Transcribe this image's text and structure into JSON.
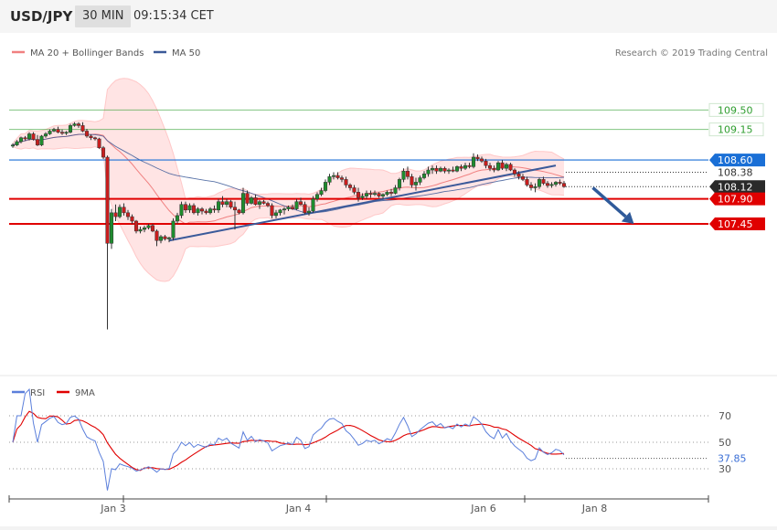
{
  "header": {
    "symbol": "USD/JPY",
    "timeframe": "30 MIN",
    "time": "09:15:34 CET"
  },
  "main_legend": {
    "items": [
      {
        "label": "MA 20 + Bollinger Bands",
        "color": "#f08080"
      },
      {
        "label": "MA 50",
        "color": "#3b5998"
      }
    ],
    "copyright": "Research © 2019 Trading Central"
  },
  "levels": {
    "r2": {
      "label": "109.50",
      "value": 109.5,
      "color": "#2f9e2f"
    },
    "r1": {
      "label": "109.15",
      "value": 109.15,
      "color": "#2f9e2f"
    },
    "pivot": {
      "label": "108.60",
      "value": 108.6,
      "color": "#1a6fd6"
    },
    "last": {
      "label": "108.12",
      "value": 108.12,
      "color": "#2a2a2a"
    },
    "s1": {
      "label": "107.90",
      "value": 107.9,
      "color": "#e00000"
    },
    "s2": {
      "label": "107.45",
      "value": 107.45,
      "color": "#e00000"
    },
    "ma": {
      "label": "108.38",
      "value": 108.38
    }
  },
  "rsi_legend": {
    "items": [
      {
        "label": "RSI",
        "color": "#5b7fdb"
      },
      {
        "label": "9MA",
        "color": "#e00000"
      }
    ]
  },
  "rsi_axis": {
    "ticks": [
      {
        "label": "70",
        "value": 70
      },
      {
        "label": "50",
        "value": 50
      },
      {
        "label": "30",
        "value": 30
      }
    ],
    "current": {
      "label": "37.85",
      "value": 37.85
    }
  },
  "x_axis": {
    "labels": [
      {
        "label": "Jan 3",
        "index": 24
      },
      {
        "label": "Jan 4",
        "index": 69
      },
      {
        "label": "Jan 6",
        "index": 114
      },
      {
        "label": "Jan 8",
        "index": 141
      }
    ]
  },
  "chart_data": {
    "type": "candlestick",
    "instrument": "USD/JPY",
    "y_unit": "JPY",
    "trend_lines": [
      {
        "name": "support trendline",
        "from": {
          "index": 38,
          "value": 107.15
        },
        "to": {
          "index": 132,
          "value": 108.5
        }
      },
      {
        "name": "projection arrow",
        "from": {
          "index": 141,
          "value": 108.1
        },
        "to": {
          "index": 151,
          "value": 107.45
        }
      }
    ],
    "candles": [
      [
        108.85,
        108.9,
        108.82,
        108.87
      ],
      [
        108.87,
        108.96,
        108.85,
        108.93
      ],
      [
        108.93,
        109.02,
        108.9,
        109.0
      ],
      [
        109.0,
        109.03,
        108.95,
        108.98
      ],
      [
        108.98,
        109.1,
        108.95,
        109.07
      ],
      [
        109.07,
        109.1,
        108.95,
        108.97
      ],
      [
        108.97,
        109.05,
        108.85,
        108.87
      ],
      [
        108.87,
        109.05,
        108.85,
        109.03
      ],
      [
        109.03,
        109.1,
        109.0,
        109.07
      ],
      [
        109.07,
        109.15,
        109.05,
        109.12
      ],
      [
        109.12,
        109.18,
        109.1,
        109.15
      ],
      [
        109.15,
        109.2,
        109.08,
        109.1
      ],
      [
        109.1,
        109.15,
        109.05,
        109.08
      ],
      [
        109.08,
        109.12,
        109.05,
        109.1
      ],
      [
        109.1,
        109.25,
        109.08,
        109.22
      ],
      [
        109.22,
        109.28,
        109.2,
        109.25
      ],
      [
        109.25,
        109.28,
        109.18,
        109.22
      ],
      [
        109.22,
        109.28,
        109.1,
        109.12
      ],
      [
        109.12,
        109.16,
        109.0,
        109.03
      ],
      [
        109.03,
        109.06,
        108.96,
        109.0
      ],
      [
        109.0,
        109.02,
        108.95,
        108.98
      ],
      [
        108.98,
        109.0,
        108.8,
        108.82
      ],
      [
        108.82,
        108.85,
        108.62,
        108.65
      ],
      [
        108.65,
        108.68,
        105.55,
        107.1
      ],
      [
        107.1,
        107.72,
        107.0,
        107.65
      ],
      [
        107.65,
        107.8,
        107.5,
        107.58
      ],
      [
        107.58,
        107.8,
        107.55,
        107.75
      ],
      [
        107.75,
        107.82,
        107.6,
        107.65
      ],
      [
        107.65,
        107.7,
        107.52,
        107.58
      ],
      [
        107.58,
        107.62,
        107.45,
        107.5
      ],
      [
        107.5,
        107.52,
        107.28,
        107.32
      ],
      [
        107.32,
        107.4,
        107.28,
        107.35
      ],
      [
        107.35,
        107.42,
        107.3,
        107.38
      ],
      [
        107.38,
        107.45,
        107.35,
        107.42
      ],
      [
        107.42,
        107.45,
        107.3,
        107.32
      ],
      [
        107.32,
        107.35,
        107.05,
        107.15
      ],
      [
        107.15,
        107.25,
        107.1,
        107.22
      ],
      [
        107.22,
        107.25,
        107.15,
        107.18
      ],
      [
        107.18,
        107.22,
        107.12,
        107.2
      ],
      [
        107.2,
        107.55,
        107.15,
        107.5
      ],
      [
        107.5,
        107.65,
        107.45,
        107.6
      ],
      [
        107.6,
        107.85,
        107.55,
        107.8
      ],
      [
        107.8,
        107.85,
        107.65,
        107.7
      ],
      [
        107.7,
        107.82,
        107.65,
        107.78
      ],
      [
        107.78,
        107.82,
        107.62,
        107.65
      ],
      [
        107.65,
        107.75,
        107.6,
        107.72
      ],
      [
        107.72,
        107.75,
        107.62,
        107.68
      ],
      [
        107.68,
        107.72,
        107.62,
        107.65
      ],
      [
        107.65,
        107.75,
        107.62,
        107.72
      ],
      [
        107.72,
        107.78,
        107.65,
        107.7
      ],
      [
        107.7,
        107.9,
        107.65,
        107.85
      ],
      [
        107.85,
        107.95,
        107.75,
        107.8
      ],
      [
        107.8,
        107.9,
        107.75,
        107.85
      ],
      [
        107.85,
        107.88,
        107.72,
        107.75
      ],
      [
        107.75,
        107.85,
        107.35,
        107.7
      ],
      [
        107.7,
        107.72,
        107.62,
        107.65
      ],
      [
        107.65,
        108.1,
        107.62,
        108.0
      ],
      [
        108.0,
        108.05,
        107.78,
        107.82
      ],
      [
        107.82,
        107.95,
        107.8,
        107.92
      ],
      [
        107.92,
        107.98,
        107.78,
        107.8
      ],
      [
        107.8,
        107.88,
        107.72,
        107.85
      ],
      [
        107.85,
        107.88,
        107.8,
        107.82
      ],
      [
        107.82,
        107.85,
        107.75,
        107.78
      ],
      [
        107.78,
        107.82,
        107.55,
        107.6
      ],
      [
        107.6,
        107.7,
        107.55,
        107.65
      ],
      [
        107.65,
        107.72,
        107.6,
        107.7
      ],
      [
        107.7,
        107.75,
        107.62,
        107.72
      ],
      [
        107.72,
        107.78,
        107.68,
        107.75
      ],
      [
        107.75,
        107.8,
        107.7,
        107.72
      ],
      [
        107.72,
        107.9,
        107.7,
        107.85
      ],
      [
        107.85,
        107.92,
        107.78,
        107.8
      ],
      [
        107.8,
        107.85,
        107.62,
        107.65
      ],
      [
        107.65,
        107.75,
        107.6,
        107.68
      ],
      [
        107.68,
        107.95,
        107.65,
        107.9
      ],
      [
        107.9,
        108.02,
        107.85,
        107.98
      ],
      [
        107.98,
        108.1,
        107.95,
        108.05
      ],
      [
        108.05,
        108.25,
        108.02,
        108.2
      ],
      [
        108.2,
        108.35,
        108.15,
        108.3
      ],
      [
        108.3,
        108.38,
        108.25,
        108.32
      ],
      [
        108.32,
        108.38,
        108.25,
        108.28
      ],
      [
        108.28,
        108.32,
        108.2,
        108.25
      ],
      [
        108.25,
        108.3,
        108.1,
        108.15
      ],
      [
        108.15,
        108.18,
        108.05,
        108.1
      ],
      [
        108.1,
        108.15,
        107.98,
        108.02
      ],
      [
        108.02,
        108.1,
        107.85,
        107.92
      ],
      [
        107.92,
        108.0,
        107.88,
        107.95
      ],
      [
        107.95,
        108.05,
        107.9,
        108.0
      ],
      [
        108.0,
        108.05,
        107.92,
        107.98
      ],
      [
        107.98,
        108.05,
        107.95,
        108.0
      ],
      [
        108.0,
        108.02,
        107.92,
        107.95
      ],
      [
        107.95,
        108.0,
        107.9,
        107.98
      ],
      [
        107.98,
        108.05,
        107.95,
        108.02
      ],
      [
        108.02,
        108.08,
        107.95,
        108.0
      ],
      [
        108.0,
        108.15,
        107.98,
        108.1
      ],
      [
        108.1,
        108.28,
        108.05,
        108.25
      ],
      [
        108.25,
        108.45,
        108.2,
        108.4
      ],
      [
        108.4,
        108.48,
        108.25,
        108.3
      ],
      [
        108.3,
        108.35,
        108.1,
        108.15
      ],
      [
        108.15,
        108.28,
        108.05,
        108.2
      ],
      [
        108.2,
        108.32,
        108.15,
        108.28
      ],
      [
        108.28,
        108.4,
        108.25,
        108.35
      ],
      [
        108.35,
        108.48,
        108.3,
        108.42
      ],
      [
        108.42,
        108.5,
        108.35,
        108.45
      ],
      [
        108.45,
        108.5,
        108.35,
        108.4
      ],
      [
        108.4,
        108.48,
        108.38,
        108.45
      ],
      [
        108.45,
        108.48,
        108.36,
        108.4
      ],
      [
        108.4,
        108.45,
        108.35,
        108.42
      ],
      [
        108.42,
        108.48,
        108.38,
        108.4
      ],
      [
        108.4,
        108.5,
        108.38,
        108.48
      ],
      [
        108.48,
        108.52,
        108.4,
        108.45
      ],
      [
        108.45,
        108.55,
        108.42,
        108.5
      ],
      [
        108.5,
        108.55,
        108.45,
        108.48
      ],
      [
        108.48,
        108.72,
        108.45,
        108.65
      ],
      [
        108.65,
        108.7,
        108.58,
        108.62
      ],
      [
        108.62,
        108.66,
        108.55,
        108.58
      ],
      [
        108.58,
        108.62,
        108.45,
        108.5
      ],
      [
        108.5,
        108.55,
        108.4,
        108.45
      ],
      [
        108.45,
        108.5,
        108.38,
        108.42
      ],
      [
        108.42,
        108.58,
        108.4,
        108.55
      ],
      [
        108.55,
        108.6,
        108.42,
        108.45
      ],
      [
        108.45,
        108.55,
        108.4,
        108.52
      ],
      [
        108.52,
        108.55,
        108.4,
        108.42
      ],
      [
        108.42,
        108.45,
        108.3,
        108.35
      ],
      [
        108.35,
        108.4,
        108.25,
        108.3
      ],
      [
        108.3,
        108.35,
        108.22,
        108.25
      ],
      [
        108.25,
        108.3,
        108.12,
        108.15
      ],
      [
        108.15,
        108.2,
        108.05,
        108.1
      ],
      [
        108.1,
        108.18,
        108.02,
        108.12
      ],
      [
        108.12,
        108.28,
        108.08,
        108.25
      ],
      [
        108.25,
        108.3,
        108.15,
        108.18
      ],
      [
        108.18,
        108.22,
        108.1,
        108.14
      ],
      [
        108.14,
        108.2,
        108.1,
        108.16
      ],
      [
        108.16,
        108.22,
        108.12,
        108.2
      ],
      [
        108.2,
        108.25,
        108.15,
        108.18
      ],
      [
        108.18,
        108.22,
        108.1,
        108.12
      ]
    ]
  }
}
